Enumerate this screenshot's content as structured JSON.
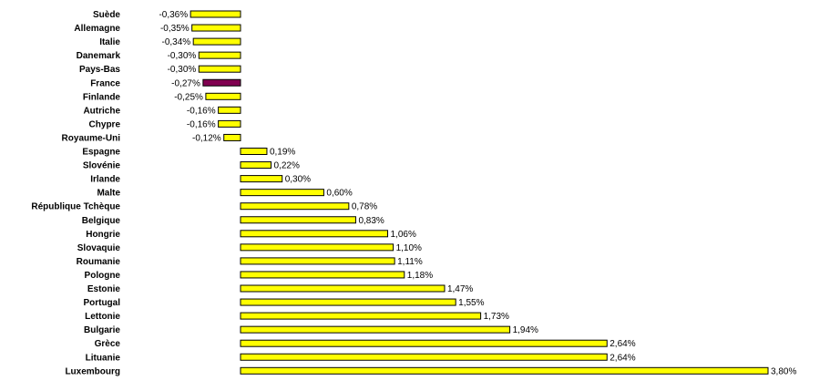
{
  "chart_data": {
    "type": "bar",
    "orientation": "horizontal",
    "categories": [
      "Suède",
      "Allemagne",
      "Italie",
      "Danemark",
      "Pays-Bas",
      "France",
      "Finlande",
      "Autriche",
      "Chypre",
      "Royaume-Uni",
      "Espagne",
      "Slovénie",
      "Irlande",
      "Malte",
      "République Tchèque",
      "Belgique",
      "Hongrie",
      "Slovaquie",
      "Roumanie",
      "Pologne",
      "Estonie",
      "Portugal",
      "Lettonie",
      "Bulgarie",
      "Grèce",
      "Lituanie",
      "Luxembourg"
    ],
    "values": [
      -0.36,
      -0.35,
      -0.34,
      -0.3,
      -0.3,
      -0.27,
      -0.25,
      -0.16,
      -0.16,
      -0.12,
      0.19,
      0.22,
      0.3,
      0.6,
      0.78,
      0.83,
      1.06,
      1.1,
      1.11,
      1.18,
      1.47,
      1.55,
      1.73,
      1.94,
      2.64,
      2.64,
      3.8
    ],
    "value_labels": [
      "-0,36%",
      "-0,35%",
      "-0,34%",
      "-0,30%",
      "-0,30%",
      "-0,27%",
      "-0,25%",
      "-0,16%",
      "-0,16%",
      "-0,12%",
      "0,19%",
      "0,22%",
      "0,30%",
      "0,60%",
      "0,78%",
      "0,83%",
      "1,06%",
      "1,10%",
      "1,11%",
      "1,18%",
      "1,47%",
      "1,55%",
      "1,73%",
      "1,94%",
      "2,64%",
      "2,64%",
      "3,80%"
    ],
    "highlight_category": "France",
    "colors": {
      "bar": "#ffff00",
      "highlight": "#800050",
      "border": "#000000"
    },
    "grid": false,
    "legend": "none",
    "xlim": [
      -0.36,
      3.8
    ]
  }
}
